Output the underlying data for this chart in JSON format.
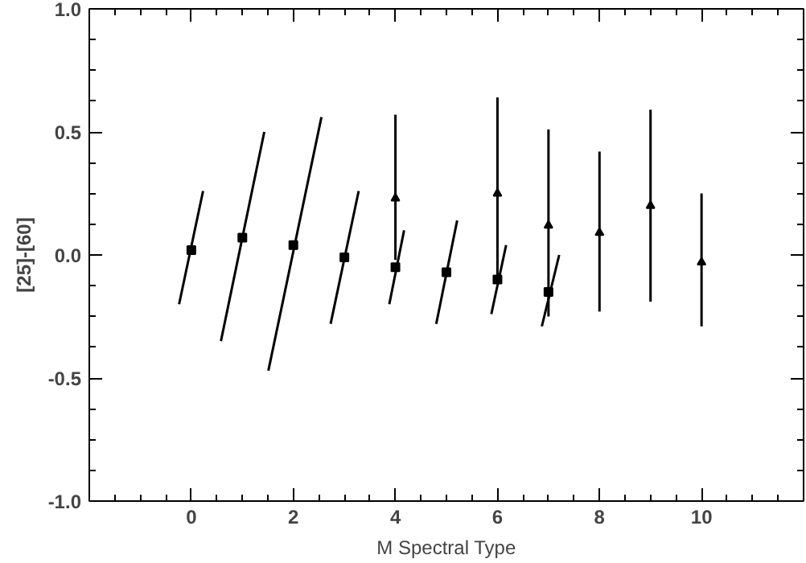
{
  "chart_data": {
    "type": "scatter",
    "xlabel": "M Spectral Type",
    "ylabel": "[25]-[60]",
    "xlim": [
      -2,
      12
    ],
    "ylim": [
      -1.0,
      1.0
    ],
    "xticks": [
      0,
      2,
      4,
      6,
      8,
      10
    ],
    "yticks": [
      {
        "value": -1.0,
        "label": "-1.0"
      },
      {
        "value": -0.5,
        "label": "-0.5"
      },
      {
        "value": 0.0,
        "label": "0.0"
      },
      {
        "value": 0.5,
        "label": "0.5"
      },
      {
        "value": 1.0,
        "label": "1.0"
      }
    ],
    "grid": false,
    "series": [
      {
        "marker": "square",
        "color": "#000000",
        "x": [
          0,
          1,
          2,
          3,
          4,
          5,
          6,
          7
        ],
        "values": [
          0.02,
          0.07,
          0.04,
          -0.01,
          -0.05,
          -0.07,
          -0.1,
          -0.15
        ]
      },
      {
        "type": "line",
        "color": "#000000",
        "x": [
          -0.24,
          0.23
        ],
        "values": [
          -0.2,
          0.26
        ]
      },
      {
        "type": "line",
        "color": "#000000",
        "x": [
          0.58,
          1.43
        ],
        "values": [
          -0.35,
          0.5
        ]
      },
      {
        "type": "line",
        "color": "#000000",
        "x": [
          1.51,
          2.55
        ],
        "values": [
          -0.47,
          0.56
        ]
      },
      {
        "type": "line",
        "color": "#000000",
        "x": [
          2.73,
          3.28
        ],
        "values": [
          -0.28,
          0.26
        ]
      },
      {
        "type": "line",
        "color": "#000000",
        "x": [
          3.88,
          4.17
        ],
        "values": [
          -0.2,
          0.1
        ]
      },
      {
        "type": "line",
        "color": "#000000",
        "x": [
          4.8,
          5.21
        ],
        "values": [
          -0.28,
          0.14
        ]
      },
      {
        "type": "line",
        "color": "#000000",
        "x": [
          5.88,
          6.17
        ],
        "values": [
          -0.24,
          0.04
        ]
      },
      {
        "type": "line",
        "color": "#000000",
        "x": [
          6.87,
          7.21
        ],
        "values": [
          -0.29,
          0.0
        ]
      },
      {
        "marker": "triangle",
        "color": "#000000",
        "x": [
          4,
          6,
          7,
          8,
          9,
          10
        ],
        "values": [
          0.23,
          0.25,
          0.12,
          0.09,
          0.2,
          -0.03
        ],
        "errors": [
          [
            -0.02,
            0.57
          ],
          [
            -0.09,
            0.64
          ],
          [
            -0.25,
            0.51
          ],
          [
            -0.23,
            0.42
          ],
          [
            -0.19,
            0.59
          ],
          [
            -0.29,
            0.25
          ]
        ]
      }
    ]
  }
}
